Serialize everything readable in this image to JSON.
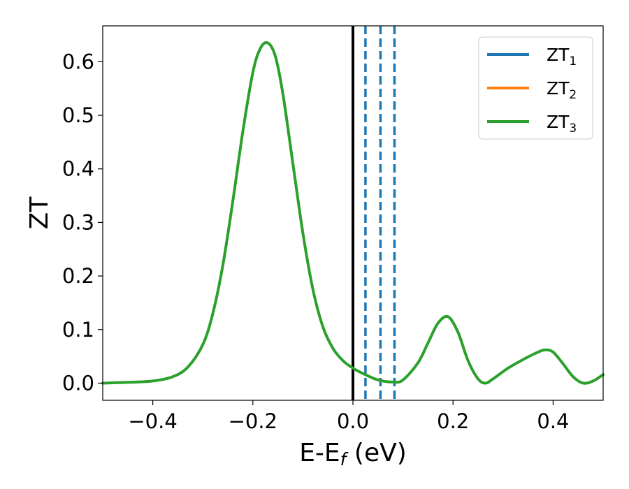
{
  "chart_data": {
    "type": "line",
    "xlabel": "E-E",
    "xlabel_sub": "f",
    "xlabel_unit": " (eV)",
    "ylabel": "ZT",
    "xlim": [
      -0.5,
      0.5
    ],
    "ylim": [
      -0.032,
      0.667
    ],
    "xticks": [
      -0.4,
      -0.2,
      0.0,
      0.2,
      0.4
    ],
    "xtick_labels": [
      "−0.4",
      "−0.2",
      "0.0",
      "0.2",
      "0.4"
    ],
    "yticks": [
      0.0,
      0.1,
      0.2,
      0.3,
      0.4,
      0.5,
      0.6
    ],
    "ytick_labels": [
      "0.0",
      "0.1",
      "0.2",
      "0.3",
      "0.4",
      "0.5",
      "0.6"
    ],
    "grid": false,
    "legend_position": "top-right",
    "fermi_line": {
      "x": 0.0,
      "color": "#000000"
    },
    "dashed_lines": {
      "x": [
        0.025,
        0.055,
        0.083
      ],
      "color": "#1f77b4"
    },
    "series": [
      {
        "name": "ZT",
        "sub": "1",
        "color": "#1f77b4"
      },
      {
        "name": "ZT",
        "sub": "2",
        "color": "#ff7f0e"
      },
      {
        "name": "ZT",
        "sub": "3",
        "color": "#2ca02c",
        "x": [
          -0.5,
          -0.45,
          -0.4,
          -0.36,
          -0.33,
          -0.3,
          -0.28,
          -0.26,
          -0.24,
          -0.22,
          -0.2,
          -0.185,
          -0.17,
          -0.155,
          -0.14,
          -0.12,
          -0.1,
          -0.08,
          -0.06,
          -0.04,
          -0.02,
          0.0,
          0.02,
          0.05,
          0.08,
          0.1,
          0.13,
          0.15,
          0.17,
          0.19,
          0.21,
          0.23,
          0.25,
          0.265,
          0.28,
          0.31,
          0.34,
          0.37,
          0.385,
          0.4,
          0.42,
          0.44,
          0.46,
          0.48,
          0.5
        ],
        "y": [
          0.0,
          0.0015,
          0.004,
          0.012,
          0.03,
          0.072,
          0.13,
          0.22,
          0.34,
          0.47,
          0.58,
          0.625,
          0.635,
          0.61,
          0.54,
          0.41,
          0.28,
          0.175,
          0.105,
          0.065,
          0.042,
          0.028,
          0.018,
          0.006,
          0.002,
          0.006,
          0.038,
          0.075,
          0.112,
          0.124,
          0.095,
          0.042,
          0.008,
          0.0,
          0.008,
          0.028,
          0.044,
          0.058,
          0.062,
          0.058,
          0.036,
          0.012,
          0.0,
          0.004,
          0.016
        ]
      }
    ]
  }
}
